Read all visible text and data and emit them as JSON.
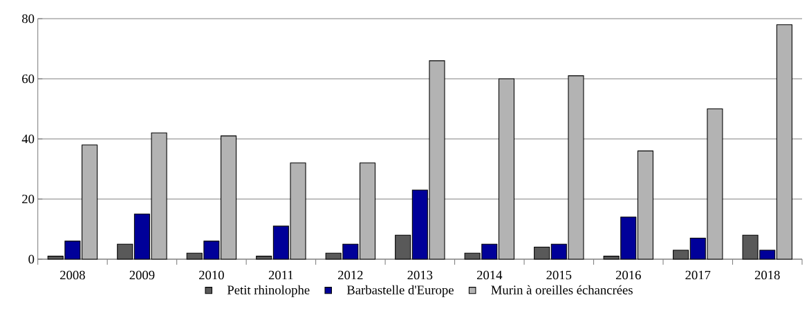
{
  "chart_data": {
    "type": "bar",
    "categories": [
      "2008",
      "2009",
      "2010",
      "2011",
      "2012",
      "2013",
      "2014",
      "2015",
      "2016",
      "2017",
      "2018"
    ],
    "series": [
      {
        "name": "Petit rhinolophe",
        "color": "#595959",
        "values": [
          1,
          5,
          2,
          1,
          2,
          8,
          2,
          4,
          1,
          3,
          8
        ]
      },
      {
        "name": "Barbastelle d'Europe",
        "color": "#000099",
        "values": [
          6,
          15,
          6,
          11,
          5,
          23,
          5,
          5,
          14,
          7,
          3
        ]
      },
      {
        "name": "Murin à oreilles échancrées",
        "color": "#b3b3b3",
        "values": [
          38,
          42,
          41,
          32,
          32,
          66,
          60,
          61,
          36,
          50,
          78
        ]
      }
    ],
    "ylim": [
      0,
      80
    ],
    "yticks": [
      0,
      20,
      40,
      60,
      80
    ],
    "grid": "y",
    "legend": "bottom"
  }
}
